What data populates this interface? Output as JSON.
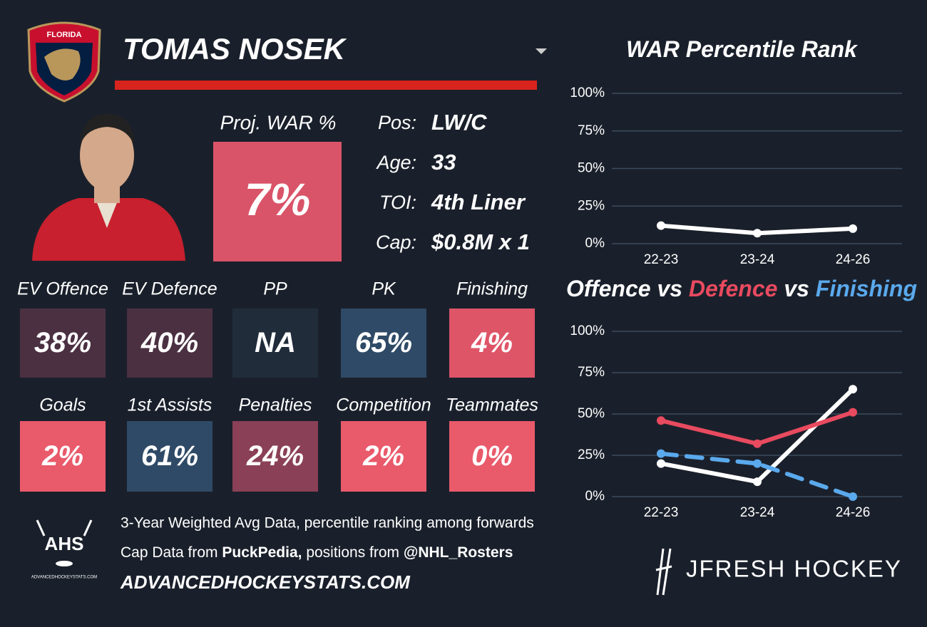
{
  "logo_text": "FLORIDA",
  "player_name": "TOMAS NOSEK",
  "proj": {
    "label": "Proj. WAR %",
    "value": "7%",
    "color": "#d95468"
  },
  "info": [
    {
      "label": "Pos:",
      "value": "LW/C"
    },
    {
      "label": "Age:",
      "value": "33"
    },
    {
      "label": "TOI:",
      "value": "4th Liner"
    },
    {
      "label": "Cap:",
      "value": "$0.8M x 1"
    }
  ],
  "tiles": [
    {
      "label": "EV Offence",
      "value": "38%",
      "color": "#4b3042"
    },
    {
      "label": "EV Defence",
      "value": "40%",
      "color": "#4b3042"
    },
    {
      "label": "PP",
      "value": "NA",
      "color": "#202c3a"
    },
    {
      "label": "PK",
      "value": "65%",
      "color": "#2f4a66"
    },
    {
      "label": "Finishing",
      "value": "4%",
      "color": "#de5568"
    },
    {
      "label": "Goals",
      "value": "2%",
      "color": "#e95a6b"
    },
    {
      "label": "1st Assists",
      "value": "61%",
      "color": "#2f4a66"
    },
    {
      "label": "Penalties",
      "value": "24%",
      "color": "#8a4056"
    },
    {
      "label": "Competition",
      "value": "2%",
      "color": "#e95a6b"
    },
    {
      "label": "Teammates",
      "value": "0%",
      "color": "#e95a6b"
    }
  ],
  "footer": {
    "line1": "3-Year Weighted Avg Data, percentile ranking among forwards",
    "line2_a": "Cap Data from",
    "line2_b": "PuckPedia,",
    "line2_c": "positions from",
    "line2_d": "@NHL_Rosters",
    "site": "ADVANCEDHOCKEYSTATS.COM",
    "ahs": "AHS",
    "ahs_small": "ADVANCEDHOCKEYSTATS.COM",
    "brand": "JFRESH HOCKEY"
  },
  "chart_data": [
    {
      "type": "line",
      "title_words": [
        "WAR Percentile Rank"
      ],
      "categories": [
        "22-23",
        "23-24",
        "24-26"
      ],
      "series": [
        {
          "name": "WAR",
          "color": "#ffffff",
          "values": [
            12,
            7,
            10
          ]
        }
      ],
      "ylim": [
        0,
        100
      ],
      "yticks": [
        {
          "value": 0,
          "label": "0%"
        },
        {
          "value": 25,
          "label": "25%"
        },
        {
          "value": 50,
          "label": "50%"
        },
        {
          "value": 75,
          "label": "75%"
        },
        {
          "value": 100,
          "label": "100%"
        }
      ],
      "grid": true
    },
    {
      "type": "line",
      "title_words": [
        "Offence",
        "vs",
        "Defence",
        "vs",
        "Finishing"
      ],
      "categories": [
        "22-23",
        "23-24",
        "24-26"
      ],
      "series": [
        {
          "name": "Offence",
          "color": "#ffffff",
          "values": [
            20,
            9,
            65
          ]
        },
        {
          "name": "Defence",
          "color": "#e84a5f",
          "values": [
            46,
            32,
            51
          ]
        },
        {
          "name": "Finishing",
          "color": "#5aa9ec",
          "values": [
            26,
            20,
            0
          ],
          "dashed": true
        }
      ],
      "ylim": [
        0,
        100
      ],
      "yticks": [
        {
          "value": 0,
          "label": "0%"
        },
        {
          "value": 25,
          "label": "25%"
        },
        {
          "value": 50,
          "label": "50%"
        },
        {
          "value": 75,
          "label": "75%"
        },
        {
          "value": 100,
          "label": "100%"
        }
      ],
      "grid": true
    }
  ]
}
